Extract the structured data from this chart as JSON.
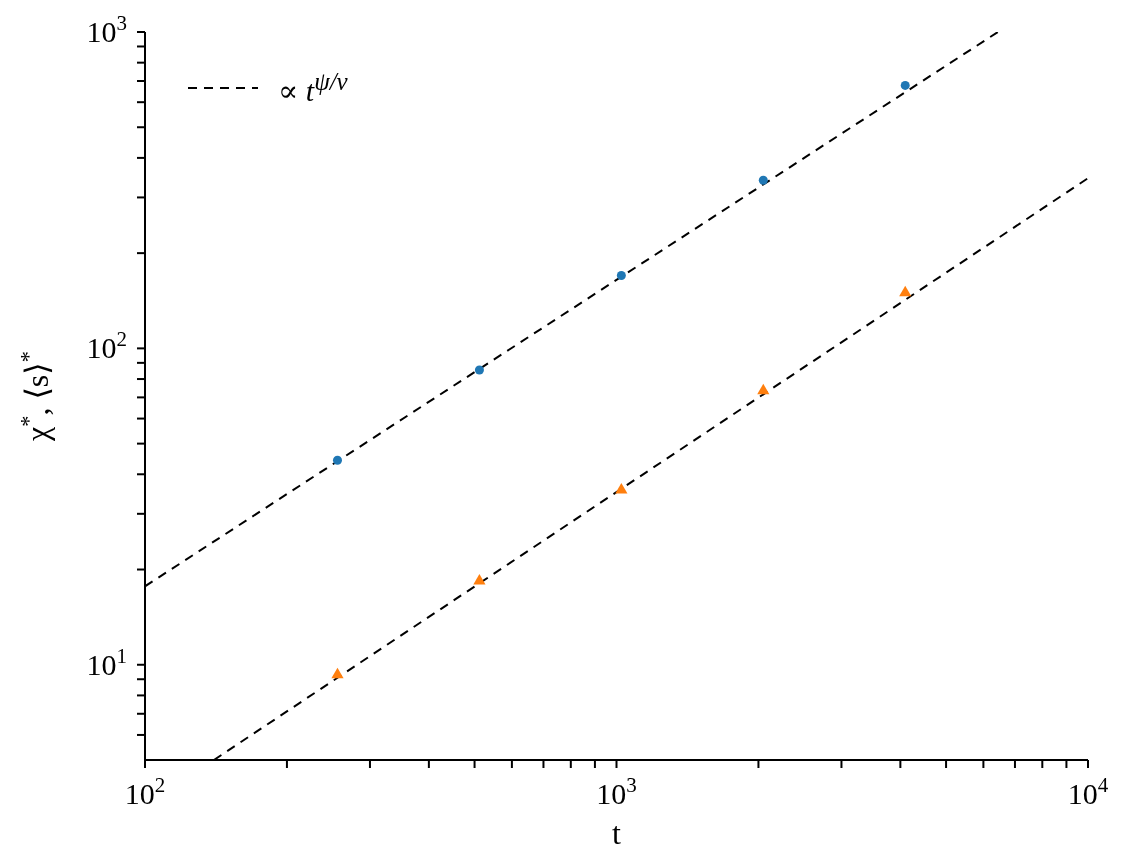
{
  "chart_data": {
    "type": "scatter",
    "xlabel": "t",
    "ylabel": "χ$^{*}$, ⟨s⟩$^{*}$",
    "log": "xy",
    "grid": false,
    "legend": "top left",
    "xlim": [
      100,
      10000
    ],
    "xticks": [
      {
        "value": 100,
        "label": "10$^{2}$"
      },
      {
        "value": 200,
        "label": null
      },
      {
        "value": 300,
        "label": null
      },
      {
        "value": 400,
        "label": null
      },
      {
        "value": 500,
        "label": null
      },
      {
        "value": 600,
        "label": null
      },
      {
        "value": 700,
        "label": null
      },
      {
        "value": 800,
        "label": null
      },
      {
        "value": 900,
        "label": null
      },
      {
        "value": 1000,
        "label": "10$^{3}$"
      },
      {
        "value": 2000,
        "label": null
      },
      {
        "value": 3000,
        "label": null
      },
      {
        "value": 4000,
        "label": null
      },
      {
        "value": 5000,
        "label": null
      },
      {
        "value": 6000,
        "label": null
      },
      {
        "value": 7000,
        "label": null
      },
      {
        "value": 8000,
        "label": null
      },
      {
        "value": 9000,
        "label": null
      },
      {
        "value": 10000,
        "label": "10$^{4}$"
      }
    ],
    "ylim": [
      5,
      1000
    ],
    "yticks": [
      {
        "value": 6,
        "label": null
      },
      {
        "value": 7,
        "label": null
      },
      {
        "value": 8,
        "label": null
      },
      {
        "value": 9,
        "label": null
      },
      {
        "value": 10,
        "label": "10$^{1}$"
      },
      {
        "value": 20,
        "label": null
      },
      {
        "value": 30,
        "label": null
      },
      {
        "value": 40,
        "label": null
      },
      {
        "value": 50,
        "label": null
      },
      {
        "value": 60,
        "label": null
      },
      {
        "value": 70,
        "label": null
      },
      {
        "value": 80,
        "label": null
      },
      {
        "value": 90,
        "label": null
      },
      {
        "value": 100,
        "label": "10$^{2}$"
      },
      {
        "value": 200,
        "label": null
      },
      {
        "value": 300,
        "label": null
      },
      {
        "value": 400,
        "label": null
      },
      {
        "value": 500,
        "label": null
      },
      {
        "value": 600,
        "label": null
      },
      {
        "value": 700,
        "label": null
      },
      {
        "value": 800,
        "label": null
      },
      {
        "value": 900,
        "label": null
      },
      {
        "value": 1000,
        "label": "10$^{3}$"
      }
    ],
    "series": [
      {
        "color": "#1f77b4",
        "marker": "circle",
        "x": [
          256,
          512,
          1024,
          2048,
          4096
        ],
        "values": [
          44.3,
          85.4,
          170,
          340,
          678
        ]
      },
      {
        "color": "#ff7f0e",
        "marker": "triangle",
        "x": [
          256,
          512,
          1024,
          2048,
          4096
        ],
        "values": [
          9.3,
          18.4,
          35.7,
          73.5,
          150
        ]
      },
      {
        "type": "line",
        "name": "∝ t$^{ψ/ν}$",
        "color": "#000000",
        "line_style": "dashed",
        "marker": "none",
        "x": [
          100,
          6440
        ],
        "values": [
          17.7,
          1000
        ]
      },
      {
        "type": "line",
        "color": "#000000",
        "line_style": "dashed",
        "marker": "none",
        "x": [
          140,
          10000
        ],
        "values": [
          5,
          345
        ]
      }
    ]
  }
}
